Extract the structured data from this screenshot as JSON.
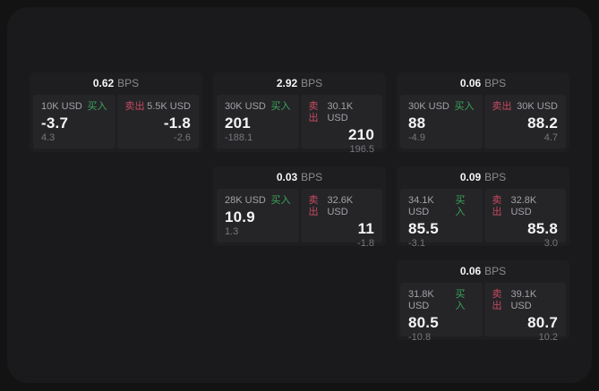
{
  "labels": {
    "bps": "BPS",
    "buy": "买入",
    "sell": "卖出"
  },
  "colors": {
    "background": "#131314",
    "panel": "#1a1a1c",
    "card": "#1e1e20",
    "tile": "#252528",
    "buy_green": "#3aa35a",
    "sell_red": "#c64a60",
    "value_white": "#f5f5f6",
    "muted_gray": "#a2a2a7"
  },
  "cards": [
    {
      "bps": "0.62",
      "buy": {
        "amount": "10K USD",
        "value": "-3.7",
        "sub": "4.3"
      },
      "sell": {
        "amount": "5.5K USD",
        "value": "-1.8",
        "sub": "-2.6"
      }
    },
    {
      "bps": "2.92",
      "buy": {
        "amount": "30K USD",
        "value": "201",
        "sub": "-188.1"
      },
      "sell": {
        "amount": "30.1K USD",
        "value": "210",
        "sub": "196.5"
      }
    },
    {
      "bps": "0.06",
      "buy": {
        "amount": "30K USD",
        "value": "88",
        "sub": "-4.9"
      },
      "sell": {
        "amount": "30K USD",
        "value": "88.2",
        "sub": "4.7"
      }
    },
    {
      "bps": "0.03",
      "buy": {
        "amount": "28K USD",
        "value": "10.9",
        "sub": "1.3"
      },
      "sell": {
        "amount": "32.6K USD",
        "value": "11",
        "sub": "-1.8"
      }
    },
    {
      "bps": "0.09",
      "buy": {
        "amount": "34.1K USD",
        "value": "85.5",
        "sub": "-3.1"
      },
      "sell": {
        "amount": "32.8K USD",
        "value": "85.8",
        "sub": "3.0"
      }
    },
    {
      "bps": "0.06",
      "buy": {
        "amount": "31.8K USD",
        "value": "80.5",
        "sub": "-10.8"
      },
      "sell": {
        "amount": "39.1K USD",
        "value": "80.7",
        "sub": "10.2"
      }
    }
  ]
}
